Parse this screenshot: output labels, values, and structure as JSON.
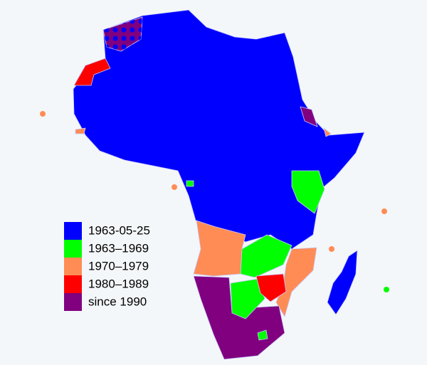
{
  "legend": [
    {
      "label": "1963-05-25",
      "color": "#0000ff"
    },
    {
      "label": "1963–1969",
      "color": "#00ff00"
    },
    {
      "label": "1970–1979",
      "color": "#ff8c55"
    },
    {
      "label": "1980–1989",
      "color": "#ff0000"
    },
    {
      "label": "since 1990",
      "color": "#800080"
    }
  ]
}
